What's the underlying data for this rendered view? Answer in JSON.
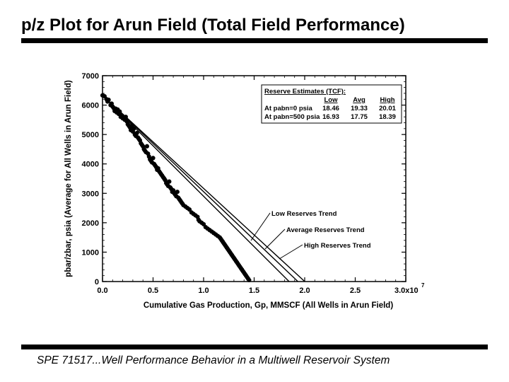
{
  "slide": {
    "title": "p/z Plot for Arun Field (Total Field Performance)",
    "footer": "SPE 71517...Well Performance Behavior in a Multiwell Reservoir System"
  },
  "chart_data": {
    "type": "scatter",
    "xlabel": "Cumulative Gas Production, Gp, MMSCF (All Wells in Arun Field)",
    "ylabel": "pbar/zbar, psia (Average for All Wells in Arun Field)",
    "x_tick_labels": [
      "0.0",
      "0.5",
      "1.0",
      "1.5",
      "2.0",
      "2.5",
      "3.0x10"
    ],
    "x_exponent": "7",
    "y_tick_labels": [
      "0",
      "1000",
      "2000",
      "3000",
      "4000",
      "5000",
      "6000",
      "7000"
    ],
    "xlim": [
      0,
      30000000
    ],
    "ylim": [
      0,
      7000
    ],
    "grid": false,
    "series": [
      {
        "name": "data",
        "points": [
          [
            0.0,
            6330
          ],
          [
            200000.0,
            6300
          ],
          [
            400000.0,
            6200
          ],
          [
            500000.0,
            6120
          ],
          [
            600000.0,
            6180
          ],
          [
            800000.0,
            6000
          ],
          [
            900000.0,
            6050
          ],
          [
            1000000.0,
            5950
          ],
          [
            1100000.0,
            5900
          ],
          [
            1200000.0,
            5800
          ],
          [
            1300000.0,
            5880
          ],
          [
            1400000.0,
            5750
          ],
          [
            1500000.0,
            5850
          ],
          [
            1600000.0,
            5700
          ],
          [
            1700000.0,
            5780
          ],
          [
            1800000.0,
            5600
          ],
          [
            1900000.0,
            5650
          ],
          [
            2000000.0,
            5550
          ],
          [
            2200000.0,
            5500
          ],
          [
            2300000.0,
            5600
          ],
          [
            2400000.0,
            5450
          ],
          [
            2500000.0,
            5350
          ],
          [
            2600000.0,
            5300
          ],
          [
            2700000.0,
            5250
          ],
          [
            2800000.0,
            5150
          ],
          [
            2900000.0,
            5300
          ],
          [
            3000000.0,
            5100
          ],
          [
            3100000.0,
            5200
          ],
          [
            3200000.0,
            5000
          ],
          [
            3300000.0,
            4950
          ],
          [
            3400000.0,
            5050
          ],
          [
            3500000.0,
            4900
          ],
          [
            3600000.0,
            4850
          ],
          [
            3700000.0,
            4800
          ],
          [
            3800000.0,
            4700
          ],
          [
            3900000.0,
            4650
          ],
          [
            4000000.0,
            4600
          ],
          [
            4100000.0,
            4500
          ],
          [
            4200000.0,
            4450
          ],
          [
            4300000.0,
            4400
          ],
          [
            4400000.0,
            4600
          ],
          [
            4500000.0,
            4350
          ],
          [
            4600000.0,
            4250
          ],
          [
            4700000.0,
            4150
          ],
          [
            4800000.0,
            4100
          ],
          [
            4900000.0,
            4050
          ],
          [
            5000000.0,
            4200
          ],
          [
            5100000.0,
            4000
          ],
          [
            5200000.0,
            3950
          ],
          [
            5300000.0,
            3900
          ],
          [
            5400000.0,
            3800
          ],
          [
            5500000.0,
            3850
          ],
          [
            5600000.0,
            3750
          ],
          [
            5700000.0,
            3700
          ],
          [
            5800000.0,
            3650
          ],
          [
            5900000.0,
            3600
          ],
          [
            6000000.0,
            3550
          ],
          [
            6100000.0,
            3500
          ],
          [
            6200000.0,
            3450
          ],
          [
            6300000.0,
            3350
          ],
          [
            6400000.0,
            3300
          ],
          [
            6500000.0,
            3250
          ],
          [
            6600000.0,
            3400
          ],
          [
            6700000.0,
            3200
          ],
          [
            6800000.0,
            3150
          ],
          [
            6900000.0,
            3050
          ],
          [
            7000000.0,
            3100
          ],
          [
            7100000.0,
            3000
          ],
          [
            7200000.0,
            2950
          ],
          [
            7300000.0,
            2900
          ],
          [
            7400000.0,
            3050
          ],
          [
            7500000.0,
            2850
          ],
          [
            7600000.0,
            2800
          ],
          [
            7700000.0,
            2750
          ],
          [
            7800000.0,
            2700
          ],
          [
            7900000.0,
            2650
          ],
          [
            8000000.0,
            2600
          ],
          [
            8200000.0,
            2550
          ],
          [
            8400000.0,
            2500
          ],
          [
            8600000.0,
            2450
          ],
          [
            8800000.0,
            2350
          ],
          [
            9000000.0,
            2300
          ],
          [
            9200000.0,
            2250
          ],
          [
            9400000.0,
            2200
          ],
          [
            9500000.0,
            2100
          ],
          [
            9600000.0,
            2050
          ],
          [
            9800000.0,
            2000
          ],
          [
            10000000.0,
            1950
          ],
          [
            10200000.0,
            1850
          ],
          [
            10400000.0,
            1800
          ],
          [
            10600000.0,
            1750
          ],
          [
            10800000.0,
            1700
          ],
          [
            11000000.0,
            1650
          ],
          [
            11200000.0,
            1600
          ],
          [
            11400000.0,
            1550
          ],
          [
            11600000.0,
            1500
          ],
          [
            11700000.0,
            1450
          ],
          [
            11800000.0,
            1400
          ],
          [
            11900000.0,
            1350
          ],
          [
            12000000.0,
            1300
          ],
          [
            12100000.0,
            1250
          ],
          [
            12200000.0,
            1200
          ],
          [
            12300000.0,
            1150
          ],
          [
            12400000.0,
            1100
          ],
          [
            12500000.0,
            1050
          ],
          [
            12600000.0,
            1000
          ],
          [
            12700000.0,
            950
          ],
          [
            12800000.0,
            900
          ],
          [
            12900000.0,
            850
          ],
          [
            13000000.0,
            800
          ],
          [
            13100000.0,
            750
          ],
          [
            13200000.0,
            700
          ],
          [
            13300000.0,
            650
          ],
          [
            13400000.0,
            600
          ],
          [
            13500000.0,
            550
          ],
          [
            13600000.0,
            500
          ],
          [
            13700000.0,
            450
          ],
          [
            13800000.0,
            400
          ],
          [
            13900000.0,
            350
          ],
          [
            14000000.0,
            300
          ],
          [
            14100000.0,
            250
          ],
          [
            14200000.0,
            200
          ],
          [
            14300000.0,
            150
          ],
          [
            14400000.0,
            100
          ],
          [
            14500000.0,
            50
          ]
        ]
      }
    ],
    "trend_lines": [
      {
        "name": "Low Reserves Trend",
        "x0": 0,
        "y0": 6330,
        "x_intercept": 18460000
      },
      {
        "name": "Average Reserves Trend",
        "x0": 0,
        "y0": 6330,
        "x_intercept": 19330000
      },
      {
        "name": "High Reserves Trend",
        "x0": 0,
        "y0": 6330,
        "x_intercept": 20010000
      }
    ],
    "annotations": [
      "Low Reserves Trend",
      "Average Reserves Trend",
      "High Reserves Trend"
    ],
    "reserve_table": {
      "title": "Reserve Estimates (TCF):",
      "columns": [
        "",
        "Low",
        "Avg",
        "High"
      ],
      "rows": [
        {
          "label": "At pabn=0 psia",
          "values": [
            "18.46",
            "19.33",
            "20.01"
          ]
        },
        {
          "label": "At pabn=500 psia",
          "values": [
            "16.93",
            "17.75",
            "18.39"
          ]
        }
      ]
    }
  }
}
